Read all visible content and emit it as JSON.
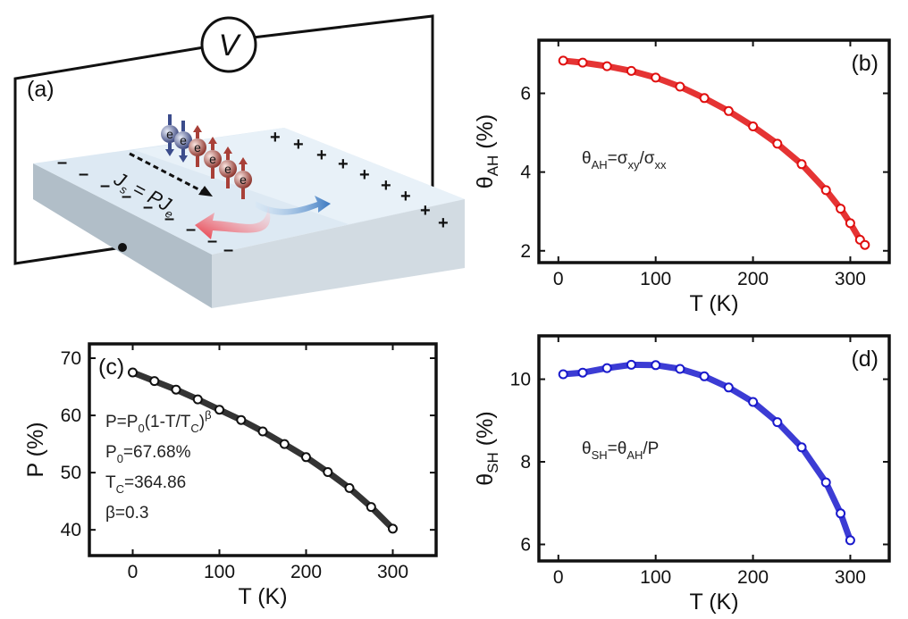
{
  "figure": {
    "panel_a": {
      "label": "(a)",
      "voltmeter": "V",
      "electron": "e",
      "equation_parts": [
        "J",
        "s",
        " = P",
        "J",
        "e"
      ],
      "minus_sign": "–",
      "plus_sign": "+"
    }
  },
  "chart_data": [
    {
      "id": "b",
      "type": "scatter",
      "panel_label": "(b)",
      "color": "#e01010",
      "xlabel": "T (K)",
      "ylabel_main": "θ",
      "ylabel_sub": "AH",
      "ylabel_unit": " (%)",
      "xlim": [
        -20,
        340
      ],
      "ylim": [
        1.7,
        7.35
      ],
      "xticks": [
        0,
        100,
        200,
        300
      ],
      "yticks": [
        2,
        4,
        6
      ],
      "annotations": [
        {
          "lines": [
            [
              {
                "t": "θ"
              },
              {
                "t": "AH",
                "sub": true
              },
              {
                "t": "=σ"
              },
              {
                "t": "xy",
                "sub": true
              },
              {
                "t": "/σ"
              },
              {
                "t": "xx",
                "sub": true
              }
            ]
          ]
        }
      ],
      "x": [
        5,
        25,
        50,
        75,
        100,
        125,
        150,
        175,
        200,
        225,
        250,
        275,
        290,
        300,
        310,
        315
      ],
      "y": [
        6.83,
        6.78,
        6.69,
        6.57,
        6.4,
        6.17,
        5.88,
        5.55,
        5.16,
        4.72,
        4.2,
        3.54,
        3.07,
        2.7,
        2.28,
        2.15
      ]
    },
    {
      "id": "c",
      "type": "scatter",
      "panel_label": "(c)",
      "color": "#111111",
      "xlabel": "T (K)",
      "ylabel_main": "P (%)",
      "ylabel_sub": "",
      "ylabel_unit": "",
      "xlim": [
        -50,
        350
      ],
      "ylim": [
        35.5,
        72.5
      ],
      "xticks": [
        0,
        100,
        200,
        300
      ],
      "yticks": [
        40,
        50,
        60,
        70
      ],
      "annotations": [
        {
          "lines": [
            [
              {
                "t": "P=P"
              },
              {
                "t": "0",
                "sub": true
              },
              {
                "t": "(1-T/T"
              },
              {
                "t": "C",
                "sub": true
              },
              {
                "t": ")"
              },
              {
                "t": "β",
                "sup": true
              }
            ],
            [
              {
                "t": "P"
              },
              {
                "t": "0",
                "sub": true
              },
              {
                "t": "=67.68%"
              }
            ],
            [
              {
                "t": "T"
              },
              {
                "t": "C",
                "sub": true
              },
              {
                "t": "=364.86"
              }
            ],
            [
              {
                "t": "β=0.3"
              }
            ]
          ]
        }
      ],
      "x": [
        0,
        25,
        50,
        75,
        100,
        125,
        150,
        175,
        200,
        225,
        250,
        275,
        300
      ],
      "y": [
        67.5,
        66.0,
        64.5,
        62.8,
        61.0,
        59.2,
        57.2,
        55.0,
        52.7,
        50.1,
        47.3,
        44.0,
        40.2
      ]
    },
    {
      "id": "d",
      "type": "scatter",
      "panel_label": "(d)",
      "color": "#1a1acc",
      "xlabel": "T (K)",
      "ylabel_main": "θ",
      "ylabel_sub": "SH",
      "ylabel_unit": " (%)",
      "xlim": [
        -20,
        340
      ],
      "ylim": [
        5.6,
        11.05
      ],
      "xticks": [
        0,
        100,
        200,
        300
      ],
      "yticks": [
        6,
        8,
        10
      ],
      "annotations": [
        {
          "lines": [
            [
              {
                "t": "θ"
              },
              {
                "t": "SH",
                "sub": true
              },
              {
                "t": "=θ"
              },
              {
                "t": "AH",
                "sub": true
              },
              {
                "t": "/P"
              }
            ]
          ]
        }
      ],
      "x": [
        5,
        25,
        50,
        75,
        100,
        125,
        150,
        175,
        200,
        225,
        250,
        275,
        290,
        300
      ],
      "y": [
        10.12,
        10.16,
        10.27,
        10.35,
        10.34,
        10.25,
        10.07,
        9.8,
        9.45,
        8.96,
        8.35,
        7.5,
        6.75,
        6.1
      ]
    }
  ]
}
